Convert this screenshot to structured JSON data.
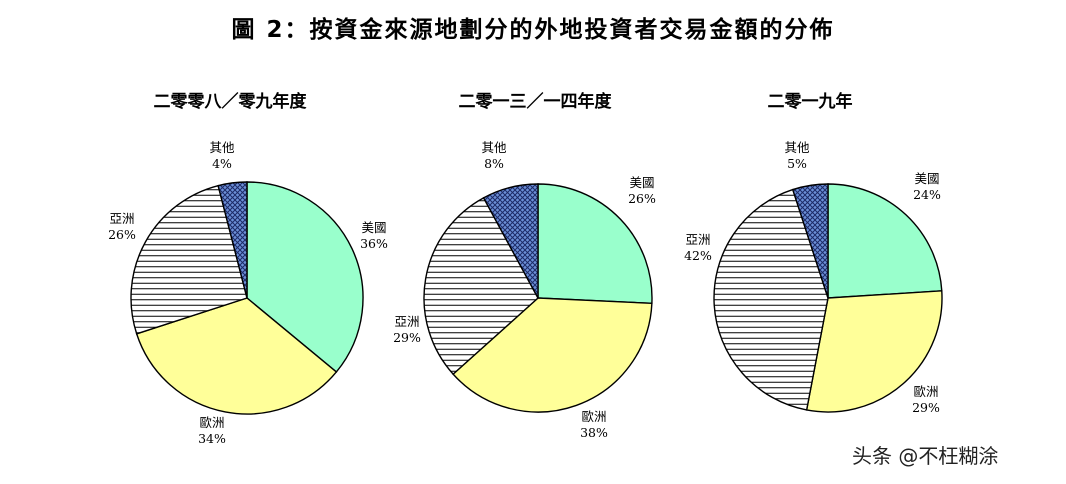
{
  "figure": {
    "title": "圖 2：按資金來源地劃分的外地投資者交易金額的分佈"
  },
  "watermark": "头条 @不枉糊涂",
  "colors": {
    "美國": "#99ffcc",
    "歐洲": "#ffff99",
    "亞洲": "#ffffff",
    "其他": "#6699dd"
  },
  "chart_data": [
    {
      "type": "pie",
      "title": "二零零八／零九年度",
      "slices": [
        {
          "label": "美國",
          "value": 36
        },
        {
          "label": "歐洲",
          "value": 34
        },
        {
          "label": "亞洲",
          "value": 26
        },
        {
          "label": "其他",
          "value": 4
        }
      ]
    },
    {
      "type": "pie",
      "title": "二零一三／一四年度",
      "slices": [
        {
          "label": "美國",
          "value": 26
        },
        {
          "label": "歐洲",
          "value": 38
        },
        {
          "label": "亞洲",
          "value": 29
        },
        {
          "label": "其他",
          "value": 8
        }
      ]
    },
    {
      "type": "pie",
      "title": "二零一九年",
      "slices": [
        {
          "label": "美國",
          "value": 24
        },
        {
          "label": "歐洲",
          "value": 29
        },
        {
          "label": "亞洲",
          "value": 42
        },
        {
          "label": "其他",
          "value": 5
        }
      ]
    }
  ]
}
